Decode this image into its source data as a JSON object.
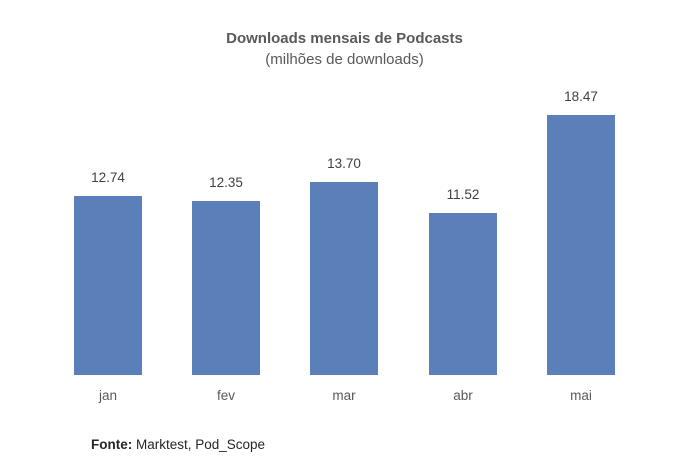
{
  "chart_data": {
    "type": "bar",
    "title": "Downloads mensais de Podcasts",
    "subtitle": "(milhões de downloads)",
    "categories": [
      "jan",
      "fev",
      "mar",
      "abr",
      "mai"
    ],
    "values": [
      12.74,
      12.35,
      13.7,
      11.52,
      18.47
    ],
    "value_labels": [
      "12.74",
      "12.35",
      "13.70",
      "11.52",
      "18.47"
    ],
    "xlabel": "",
    "ylabel": "",
    "ylim": [
      0,
      20
    ],
    "grid": false,
    "legend": "none",
    "bar_color": "#5b7fb9"
  },
  "source": {
    "label": "Fonte:",
    "text": " Marktest, Pod_Scope"
  }
}
